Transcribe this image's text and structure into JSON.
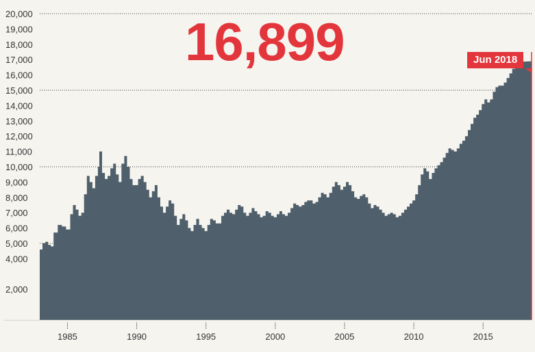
{
  "headline_value": "16,899",
  "end_label": "Jun 2018",
  "colors": {
    "area": "#4f5f6b",
    "accent": "#e2363c",
    "background": "#f6f4ef",
    "gridline": "#333333"
  },
  "chart_data": {
    "type": "area",
    "x_unit": "year",
    "y_range": [
      0,
      20000
    ],
    "x_range": [
      1983,
      2018.5
    ],
    "y_ticks": [
      "2,000",
      "4,000",
      "5,000",
      "6,000",
      "7,000",
      "8,000",
      "9,000",
      "10,000",
      "11,000",
      "12,000",
      "13,000",
      "14,000",
      "15,000",
      "16,000",
      "17,000",
      "18,000",
      "19,000",
      "20,000"
    ],
    "y_tick_values": [
      2000,
      4000,
      5000,
      6000,
      7000,
      8000,
      9000,
      10000,
      11000,
      12000,
      13000,
      14000,
      15000,
      16000,
      17000,
      18000,
      19000,
      20000
    ],
    "x_ticks": [
      "1985",
      "1990",
      "1995",
      "2000",
      "2005",
      "2010",
      "2015"
    ],
    "x_tick_values": [
      1985,
      1990,
      1995,
      2000,
      2005,
      2010,
      2015
    ],
    "highlighted_gridlines": [
      5000,
      10000,
      15000,
      20000
    ],
    "points": [
      [
        1983.0,
        4600
      ],
      [
        1983.2,
        5000
      ],
      [
        1983.4,
        5100
      ],
      [
        1983.6,
        4900
      ],
      [
        1983.8,
        4800
      ],
      [
        1984.0,
        5700
      ],
      [
        1984.3,
        6200
      ],
      [
        1984.6,
        6100
      ],
      [
        1984.9,
        5900
      ],
      [
        1985.2,
        6900
      ],
      [
        1985.4,
        7500
      ],
      [
        1985.6,
        7200
      ],
      [
        1985.8,
        6800
      ],
      [
        1986.0,
        7000
      ],
      [
        1986.2,
        8200
      ],
      [
        1986.4,
        9400
      ],
      [
        1986.6,
        9000
      ],
      [
        1986.8,
        8600
      ],
      [
        1987.0,
        9400
      ],
      [
        1987.2,
        10000
      ],
      [
        1987.3,
        11000
      ],
      [
        1987.5,
        9600
      ],
      [
        1987.7,
        9200
      ],
      [
        1987.9,
        9400
      ],
      [
        1988.1,
        9900
      ],
      [
        1988.3,
        10200
      ],
      [
        1988.5,
        9500
      ],
      [
        1988.7,
        9000
      ],
      [
        1988.9,
        10200
      ],
      [
        1989.1,
        10700
      ],
      [
        1989.3,
        10000
      ],
      [
        1989.5,
        9200
      ],
      [
        1989.7,
        8800
      ],
      [
        1989.9,
        8800
      ],
      [
        1990.1,
        9200
      ],
      [
        1990.3,
        9400
      ],
      [
        1990.5,
        9000
      ],
      [
        1990.7,
        8500
      ],
      [
        1990.9,
        8000
      ],
      [
        1991.1,
        8400
      ],
      [
        1991.3,
        8800
      ],
      [
        1991.5,
        8000
      ],
      [
        1991.7,
        7400
      ],
      [
        1991.9,
        7000
      ],
      [
        1992.1,
        7400
      ],
      [
        1992.3,
        7800
      ],
      [
        1992.5,
        7600
      ],
      [
        1992.7,
        6800
      ],
      [
        1992.9,
        6200
      ],
      [
        1993.1,
        6600
      ],
      [
        1993.3,
        6900
      ],
      [
        1993.5,
        6500
      ],
      [
        1993.7,
        6000
      ],
      [
        1993.9,
        5800
      ],
      [
        1994.1,
        6200
      ],
      [
        1994.3,
        6600
      ],
      [
        1994.5,
        6200
      ],
      [
        1994.7,
        6000
      ],
      [
        1994.9,
        5800
      ],
      [
        1995.1,
        6200
      ],
      [
        1995.3,
        6600
      ],
      [
        1995.5,
        6500
      ],
      [
        1995.7,
        6300
      ],
      [
        1995.9,
        6300
      ],
      [
        1996.1,
        6800
      ],
      [
        1996.3,
        7000
      ],
      [
        1996.5,
        7200
      ],
      [
        1996.7,
        7000
      ],
      [
        1996.9,
        6900
      ],
      [
        1997.1,
        7200
      ],
      [
        1997.3,
        7500
      ],
      [
        1997.5,
        7400
      ],
      [
        1997.7,
        7000
      ],
      [
        1997.9,
        6800
      ],
      [
        1998.1,
        7000
      ],
      [
        1998.3,
        7300
      ],
      [
        1998.5,
        7100
      ],
      [
        1998.7,
        6900
      ],
      [
        1998.9,
        6700
      ],
      [
        1999.1,
        6800
      ],
      [
        1999.3,
        7100
      ],
      [
        1999.5,
        7000
      ],
      [
        1999.7,
        6800
      ],
      [
        1999.9,
        6700
      ],
      [
        2000.1,
        6900
      ],
      [
        2000.3,
        7100
      ],
      [
        2000.5,
        6900
      ],
      [
        2000.7,
        6800
      ],
      [
        2000.9,
        7000
      ],
      [
        2001.1,
        7300
      ],
      [
        2001.3,
        7600
      ],
      [
        2001.5,
        7500
      ],
      [
        2001.7,
        7400
      ],
      [
        2001.9,
        7500
      ],
      [
        2002.1,
        7700
      ],
      [
        2002.3,
        7800
      ],
      [
        2002.5,
        7800
      ],
      [
        2002.7,
        7600
      ],
      [
        2002.9,
        7700
      ],
      [
        2003.1,
        8000
      ],
      [
        2003.3,
        8300
      ],
      [
        2003.5,
        8200
      ],
      [
        2003.7,
        8000
      ],
      [
        2003.9,
        8300
      ],
      [
        2004.1,
        8700
      ],
      [
        2004.3,
        9000
      ],
      [
        2004.5,
        8800
      ],
      [
        2004.7,
        8500
      ],
      [
        2004.9,
        8700
      ],
      [
        2005.1,
        9000
      ],
      [
        2005.3,
        8800
      ],
      [
        2005.5,
        8400
      ],
      [
        2005.7,
        8000
      ],
      [
        2005.9,
        7900
      ],
      [
        2006.1,
        8100
      ],
      [
        2006.3,
        8200
      ],
      [
        2006.5,
        8000
      ],
      [
        2006.7,
        7600
      ],
      [
        2006.9,
        7300
      ],
      [
        2007.1,
        7500
      ],
      [
        2007.3,
        7400
      ],
      [
        2007.5,
        7200
      ],
      [
        2007.7,
        7000
      ],
      [
        2007.9,
        6800
      ],
      [
        2008.1,
        6900
      ],
      [
        2008.3,
        7000
      ],
      [
        2008.5,
        6900
      ],
      [
        2008.7,
        6700
      ],
      [
        2008.9,
        6800
      ],
      [
        2009.1,
        7000
      ],
      [
        2009.3,
        7200
      ],
      [
        2009.5,
        7400
      ],
      [
        2009.7,
        7600
      ],
      [
        2009.9,
        7800
      ],
      [
        2010.1,
        8200
      ],
      [
        2010.3,
        8800
      ],
      [
        2010.5,
        9500
      ],
      [
        2010.7,
        9900
      ],
      [
        2010.9,
        9700
      ],
      [
        2011.1,
        9200
      ],
      [
        2011.3,
        9600
      ],
      [
        2011.5,
        9900
      ],
      [
        2011.7,
        10100
      ],
      [
        2011.9,
        10300
      ],
      [
        2012.1,
        10600
      ],
      [
        2012.3,
        10900
      ],
      [
        2012.5,
        11200
      ],
      [
        2012.7,
        11100
      ],
      [
        2012.9,
        11000
      ],
      [
        2013.1,
        11200
      ],
      [
        2013.3,
        11500
      ],
      [
        2013.5,
        11700
      ],
      [
        2013.7,
        12000
      ],
      [
        2013.9,
        12400
      ],
      [
        2014.1,
        12800
      ],
      [
        2014.3,
        13200
      ],
      [
        2014.5,
        13400
      ],
      [
        2014.7,
        13700
      ],
      [
        2014.9,
        14100
      ],
      [
        2015.1,
        14400
      ],
      [
        2015.3,
        14200
      ],
      [
        2015.5,
        14400
      ],
      [
        2015.7,
        14900
      ],
      [
        2015.9,
        15200
      ],
      [
        2016.1,
        15300
      ],
      [
        2016.3,
        15300
      ],
      [
        2016.5,
        15500
      ],
      [
        2016.7,
        15800
      ],
      [
        2016.9,
        16100
      ],
      [
        2017.1,
        16400
      ],
      [
        2017.3,
        16700
      ],
      [
        2017.5,
        16800
      ],
      [
        2017.7,
        16850
      ],
      [
        2017.9,
        16870
      ],
      [
        2018.1,
        16880
      ],
      [
        2018.3,
        16890
      ],
      [
        2018.45,
        16899
      ]
    ]
  }
}
